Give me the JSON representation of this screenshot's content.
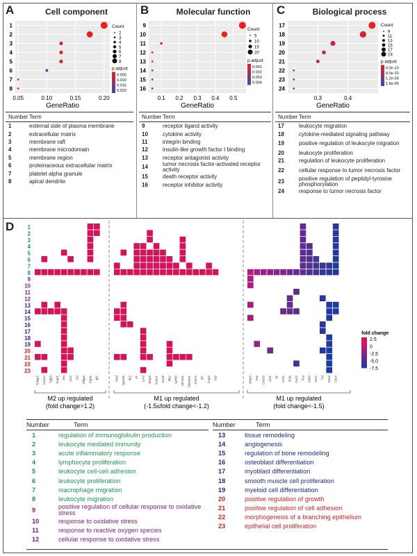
{
  "colors": {
    "green": "#1a9a52",
    "purple": "#7a1e8c",
    "blue": "#1e2a8c",
    "red": "#d82020",
    "heat_red": "#d4145a",
    "grid": "#888888"
  },
  "panels": {
    "a": {
      "letter": "A",
      "title": "Cell component"
    },
    "b": {
      "letter": "B",
      "title": "Molecular function"
    },
    "c": {
      "letter": "C",
      "title": "Biological process"
    },
    "d": {
      "letter": "D"
    }
  },
  "chart_data": [
    {
      "type": "scatter",
      "title": "Cell component",
      "xlabel": "GeneRatio",
      "ylabel": "",
      "categories": [
        "1",
        "2",
        "3",
        "4",
        "5",
        "6",
        "7",
        "8"
      ],
      "x": [
        0.2,
        0.175,
        0.125,
        0.125,
        0.125,
        0.1,
        0.05,
        0.05
      ],
      "count": [
        8,
        7,
        4,
        4,
        4,
        3,
        2,
        2
      ],
      "p_adjust": [
        0.001,
        0.002,
        0.004,
        0.004,
        0.005,
        0.019,
        0.004,
        0.003
      ],
      "xticks": [
        "0.05",
        "0.10",
        "0.15",
        "0.20"
      ],
      "xlim": [
        0.045,
        0.21
      ],
      "legend": {
        "count_title": "Count",
        "count_values": [
          "2",
          "3",
          "4",
          "5",
          "6",
          "7",
          "8"
        ],
        "color_title": "p.adjust",
        "color_values": [
          "0.005",
          "0.010",
          "0.015",
          "0.020"
        ]
      }
    },
    {
      "type": "scatter",
      "title": "Molecular function",
      "xlabel": "GeneRatio",
      "ylabel": "",
      "categories": [
        "9",
        "10",
        "11",
        "12",
        "13",
        "14",
        "15",
        "16"
      ],
      "x": [
        0.55,
        0.45,
        0.1,
        0.05,
        0.05,
        0.05,
        0.05,
        0.05
      ],
      "count": [
        20,
        16,
        4,
        2,
        2,
        2,
        2,
        2
      ],
      "p_adjust": [
        0.0001,
        0.0001,
        0.0004,
        0.001,
        0.0015,
        0.002,
        0.003,
        0.004
      ],
      "xticks": [
        "0.1",
        "0.2",
        "0.3",
        "0.4",
        "0.5"
      ],
      "xlim": [
        0.03,
        0.57
      ],
      "legend": {
        "count_title": "Count",
        "count_values": [
          "5",
          "10",
          "15",
          "20"
        ],
        "color_title": "p.adjust",
        "color_values": [
          "0.001",
          "0.002",
          "0.003",
          "0.004"
        ]
      }
    },
    {
      "type": "scatter",
      "title": "Biological process",
      "xlabel": "GeneRatio",
      "ylabel": "",
      "categories": [
        "17",
        "18",
        "19",
        "20",
        "21",
        "22",
        "23",
        "24"
      ],
      "x": [
        0.48,
        0.45,
        0.35,
        0.32,
        0.3,
        0.22,
        0.22,
        0.22
      ],
      "count": [
        19,
        18,
        15,
        13,
        12,
        9,
        9,
        9
      ],
      "p_adjust": [
        4e-10,
        6e-10,
        7e-10,
        8e-10,
        9e-10,
        1.2e-09,
        1.5e-09,
        1.8e-09
      ],
      "xticks": [
        "0.3",
        "0.4"
      ],
      "xlim": [
        0.2,
        0.5
      ],
      "legend": {
        "count_title": "Count",
        "count_values": [
          "9",
          "11",
          "13",
          "15",
          "17",
          "19"
        ],
        "color_title": "p.adjust",
        "color_values": [
          "4.0e-10",
          "8.0e-10",
          "1.2e-09",
          "1.6e-09"
        ]
      }
    },
    {
      "type": "heatmap",
      "title": "",
      "xlabel": "",
      "ylabel": "",
      "rows": [
        "1",
        "2",
        "3",
        "4",
        "5",
        "6",
        "7",
        "8",
        "9",
        "10",
        "11",
        "12",
        "13",
        "14",
        "15",
        "16",
        "17",
        "18",
        "19",
        "20",
        "21",
        "22",
        "23"
      ],
      "groups": [
        {
          "label": "M2 up regulated",
          "sublabel": "(fold change>1.2)",
          "genes": [
            "Tnfaip3",
            "Cxcl14",
            "Tgfb3",
            "Nupr1",
            "Pf4",
            "Ccl2",
            "Clu",
            "Mfge8",
            "Ptgds",
            "Igf1"
          ]
        },
        {
          "label": "M1 up regulated",
          "sublabel": "(-1.5≤fold change<-1.2)",
          "genes": [
            "Tnfsf",
            "Gpnmb",
            "Ifit3",
            "Il7",
            "Lcn2",
            "Mmp9",
            "Vcam1",
            "Cxcl9",
            "Plk2",
            "Gpr84",
            "Slc7a11",
            "Serpine1",
            "Cd274",
            "Irf7",
            "Fcgr3",
            "Il1b"
          ]
        },
        {
          "label": "M1 up regulated",
          "sublabel": "(fold change<-1.5)",
          "genes": [
            "Mmp3",
            "Fas",
            "Cxcl10",
            "Ccl5",
            "Il6",
            "Ccrl2",
            "Il12b",
            "Cxcl2",
            "Il1a",
            "Cd40",
            "Nos2",
            "Tnf",
            "Saa3",
            "Cd14"
          ]
        }
      ],
      "legend": {
        "title": "fold change",
        "values": [
          "2.5",
          "0",
          "-2.5",
          "-5.0",
          "-7.5"
        ]
      },
      "row_colors": [
        "green",
        "green",
        "green",
        "green",
        "green",
        "green",
        "green",
        "green",
        "purple",
        "purple",
        "purple",
        "purple",
        "blue",
        "blue",
        "blue",
        "blue",
        "blue",
        "blue",
        "blue",
        "red",
        "red",
        "red",
        "red"
      ]
    }
  ],
  "table_a": {
    "header_num": "Number",
    "header_term": "Term",
    "rows": [
      {
        "n": "1",
        "t": "external side of plasma membrane"
      },
      {
        "n": "2",
        "t": "extracellular matrix"
      },
      {
        "n": "3",
        "t": "membrane raft"
      },
      {
        "n": "4",
        "t": "membrane microdomain"
      },
      {
        "n": "5",
        "t": "membrane region"
      },
      {
        "n": "6",
        "t": "proteinaceous extracellular matrix"
      },
      {
        "n": "7",
        "t": "platelet alpha granule"
      },
      {
        "n": "8",
        "t": "apical dendrite"
      }
    ]
  },
  "table_b": {
    "header_num": "Number",
    "header_term": "Term",
    "rows": [
      {
        "n": "9",
        "t": "receptor ligand activity"
      },
      {
        "n": "10",
        "t": "cytokine activity"
      },
      {
        "n": "11",
        "t": "integrin binding"
      },
      {
        "n": "12",
        "t": "insulin-like growth factor I binding"
      },
      {
        "n": "13",
        "t": "receptor antagonist activity"
      },
      {
        "n": "14",
        "t": "tumor necrosis factor-activated receptor activity"
      },
      {
        "n": "15",
        "t": "death receptor activity"
      },
      {
        "n": "16",
        "t": "receptor inhibitor activity"
      }
    ]
  },
  "table_c": {
    "header_num": "Number",
    "header_term": "Term",
    "rows": [
      {
        "n": "17",
        "t": "leukocyte migration"
      },
      {
        "n": "18",
        "t": "cytokine-mediated signaling pathway"
      },
      {
        "n": "19",
        "t": "positive regulation of leukocyte migration"
      },
      {
        "n": "20",
        "t": "leukocyte proliferation"
      },
      {
        "n": "21",
        "t": "regulation of leukocyte proliferation"
      },
      {
        "n": "22",
        "t": "cellular response to tumor necrosis factor"
      },
      {
        "n": "23",
        "t": "positive regulation of peptidyl-tyrosine phosphorylation"
      },
      {
        "n": "24",
        "t": "response to tumor necrosis factor"
      }
    ]
  },
  "table_d": {
    "header_num": "Number",
    "header_term": "Term",
    "left": [
      {
        "n": "1",
        "t": "regulation of immunoglobulin production",
        "c": "green"
      },
      {
        "n": "2",
        "t": "leukocyte mediated immunity",
        "c": "green"
      },
      {
        "n": "3",
        "t": "acute inflammatory response",
        "c": "green"
      },
      {
        "n": "4",
        "t": "lymphocyte proliferation",
        "c": "green"
      },
      {
        "n": "5",
        "t": "leukocyte cell-cell adhesion",
        "c": "green"
      },
      {
        "n": "6",
        "t": "leukocyte proliferation",
        "c": "green"
      },
      {
        "n": "7",
        "t": "macrophage migration",
        "c": "green"
      },
      {
        "n": "8",
        "t": "leukocyte migration",
        "c": "green"
      },
      {
        "n": "9",
        "t": "positive regulation of cellular response to oxidative stress",
        "c": "purple"
      },
      {
        "n": "10",
        "t": "response to oxidative stress",
        "c": "purple"
      },
      {
        "n": "11",
        "t": "response to reactive oxygen species",
        "c": "purple"
      },
      {
        "n": "12",
        "t": "cellular response to oxidative stress",
        "c": "purple"
      }
    ],
    "right": [
      {
        "n": "13",
        "t": "tissue remodeling",
        "c": "blue"
      },
      {
        "n": "14",
        "t": "angiogenesis",
        "c": "blue"
      },
      {
        "n": "15",
        "t": "regulation of bone remodeling",
        "c": "blue"
      },
      {
        "n": "16",
        "t": "osteoblast differentiation",
        "c": "blue"
      },
      {
        "n": "17",
        "t": "myoblast differentiation",
        "c": "blue"
      },
      {
        "n": "18",
        "t": "smooth muscle cell proliferation",
        "c": "blue"
      },
      {
        "n": "19",
        "t": "myeloid cell differentiation",
        "c": "blue"
      },
      {
        "n": "20",
        "t": "positive regulation of growth",
        "c": "red"
      },
      {
        "n": "21",
        "t": "positive regulation of cell adhesion",
        "c": "red"
      },
      {
        "n": "22",
        "t": "morphogenesis of a branching epithelium",
        "c": "red"
      },
      {
        "n": "23",
        "t": "epithelial cell proliferation",
        "c": "red"
      }
    ]
  }
}
